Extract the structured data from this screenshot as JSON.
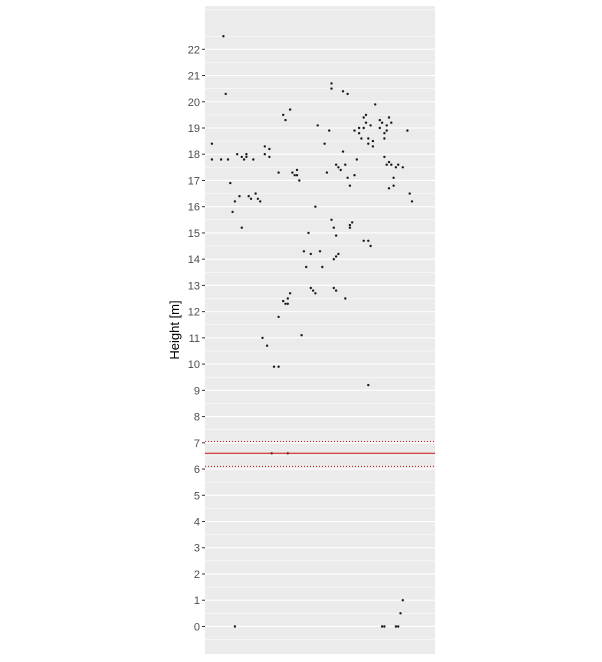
{
  "chart_data": {
    "type": "scatter",
    "title": "",
    "xlabel": "",
    "ylabel": "Height [m]",
    "ylim": [
      -1.05,
      23.65
    ],
    "y_ticks": [
      0,
      1,
      2,
      3,
      4,
      5,
      6,
      7,
      8,
      9,
      10,
      11,
      12,
      13,
      14,
      15,
      16,
      17,
      18,
      19,
      20,
      21,
      22
    ],
    "x_ticks_shown": false,
    "grid": true,
    "colors": {
      "panel": "#ebebeb",
      "grid": "#ffffff",
      "point": "#1a1a1a",
      "reference": "#cc1111",
      "tick_text": "#4d4d4d"
    },
    "reference_lines": [
      {
        "y": 6.6,
        "style": "solid"
      },
      {
        "y": 7.05,
        "style": "dotted"
      },
      {
        "y": 6.1,
        "style": "dotted"
      }
    ],
    "points": [
      [
        0.03,
        18.4
      ],
      [
        0.03,
        17.8
      ],
      [
        0.08,
        22.5
      ],
      [
        0.09,
        20.3
      ],
      [
        0.07,
        17.8
      ],
      [
        0.1,
        17.8
      ],
      [
        0.11,
        16.9
      ],
      [
        0.12,
        15.8
      ],
      [
        0.13,
        16.2
      ],
      [
        0.14,
        18.0
      ],
      [
        0.15,
        16.4
      ],
      [
        0.16,
        15.2
      ],
      [
        0.16,
        17.9
      ],
      [
        0.17,
        17.8
      ],
      [
        0.18,
        18.0
      ],
      [
        0.18,
        17.9
      ],
      [
        0.19,
        16.4
      ],
      [
        0.21,
        17.8
      ],
      [
        0.2,
        16.3
      ],
      [
        0.22,
        16.5
      ],
      [
        0.23,
        16.3
      ],
      [
        0.24,
        16.2
      ],
      [
        0.26,
        18.3
      ],
      [
        0.28,
        18.2
      ],
      [
        0.26,
        18.0
      ],
      [
        0.28,
        17.9
      ],
      [
        0.32,
        17.3
      ],
      [
        0.34,
        19.5
      ],
      [
        0.35,
        19.3
      ],
      [
        0.37,
        19.7
      ],
      [
        0.38,
        17.3
      ],
      [
        0.39,
        17.2
      ],
      [
        0.4,
        17.4
      ],
      [
        0.4,
        17.2
      ],
      [
        0.41,
        17.0
      ],
      [
        0.25,
        11.0
      ],
      [
        0.27,
        10.7
      ],
      [
        0.3,
        9.9
      ],
      [
        0.32,
        9.9
      ],
      [
        0.32,
        11.8
      ],
      [
        0.34,
        12.4
      ],
      [
        0.35,
        12.3
      ],
      [
        0.36,
        12.5
      ],
      [
        0.36,
        12.3
      ],
      [
        0.37,
        12.7
      ],
      [
        0.42,
        11.1
      ],
      [
        0.43,
        14.3
      ],
      [
        0.44,
        13.7
      ],
      [
        0.45,
        15.0
      ],
      [
        0.46,
        14.2
      ],
      [
        0.46,
        12.9
      ],
      [
        0.47,
        12.8
      ],
      [
        0.48,
        12.7
      ],
      [
        0.48,
        16.0
      ],
      [
        0.49,
        19.1
      ],
      [
        0.5,
        14.3
      ],
      [
        0.51,
        13.7
      ],
      [
        0.52,
        18.4
      ],
      [
        0.53,
        17.3
      ],
      [
        0.55,
        20.7
      ],
      [
        0.55,
        20.5
      ],
      [
        0.54,
        18.9
      ],
      [
        0.55,
        15.5
      ],
      [
        0.56,
        15.2
      ],
      [
        0.56,
        14.0
      ],
      [
        0.57,
        14.1
      ],
      [
        0.57,
        14.9
      ],
      [
        0.58,
        14.2
      ],
      [
        0.56,
        12.9
      ],
      [
        0.57,
        12.8
      ],
      [
        0.57,
        17.6
      ],
      [
        0.58,
        17.5
      ],
      [
        0.59,
        17.4
      ],
      [
        0.6,
        18.1
      ],
      [
        0.6,
        20.4
      ],
      [
        0.61,
        12.5
      ],
      [
        0.62,
        20.3
      ],
      [
        0.61,
        17.6
      ],
      [
        0.62,
        17.1
      ],
      [
        0.63,
        16.8
      ],
      [
        0.63,
        15.3
      ],
      [
        0.63,
        15.2
      ],
      [
        0.64,
        15.4
      ],
      [
        0.65,
        17.2
      ],
      [
        0.65,
        18.9
      ],
      [
        0.66,
        17.8
      ],
      [
        0.67,
        19.0
      ],
      [
        0.67,
        18.8
      ],
      [
        0.68,
        18.6
      ],
      [
        0.69,
        19.0
      ],
      [
        0.69,
        19.4
      ],
      [
        0.7,
        19.5
      ],
      [
        0.7,
        19.2
      ],
      [
        0.71,
        18.4
      ],
      [
        0.71,
        18.6
      ],
      [
        0.72,
        19.1
      ],
      [
        0.73,
        18.5
      ],
      [
        0.74,
        19.9
      ],
      [
        0.73,
        18.3
      ],
      [
        0.76,
        19.3
      ],
      [
        0.76,
        19.0
      ],
      [
        0.77,
        19.2
      ],
      [
        0.78,
        18.8
      ],
      [
        0.78,
        18.6
      ],
      [
        0.79,
        19.1
      ],
      [
        0.79,
        18.9
      ],
      [
        0.8,
        19.4
      ],
      [
        0.81,
        19.2
      ],
      [
        0.78,
        17.9
      ],
      [
        0.79,
        17.6
      ],
      [
        0.8,
        17.7
      ],
      [
        0.81,
        17.6
      ],
      [
        0.82,
        17.1
      ],
      [
        0.83,
        17.5
      ],
      [
        0.84,
        17.6
      ],
      [
        0.86,
        17.5
      ],
      [
        0.8,
        16.7
      ],
      [
        0.82,
        16.8
      ],
      [
        0.88,
        18.9
      ],
      [
        0.89,
        16.5
      ],
      [
        0.9,
        16.2
      ],
      [
        0.69,
        14.7
      ],
      [
        0.71,
        14.7
      ],
      [
        0.72,
        14.5
      ],
      [
        0.71,
        9.2
      ],
      [
        0.29,
        6.6
      ],
      [
        0.36,
        6.6
      ],
      [
        0.13,
        0.0
      ],
      [
        0.77,
        0.0
      ],
      [
        0.78,
        0.0
      ],
      [
        0.83,
        0.0
      ],
      [
        0.84,
        0.0
      ],
      [
        0.85,
        0.5
      ],
      [
        0.86,
        1.0
      ]
    ]
  }
}
